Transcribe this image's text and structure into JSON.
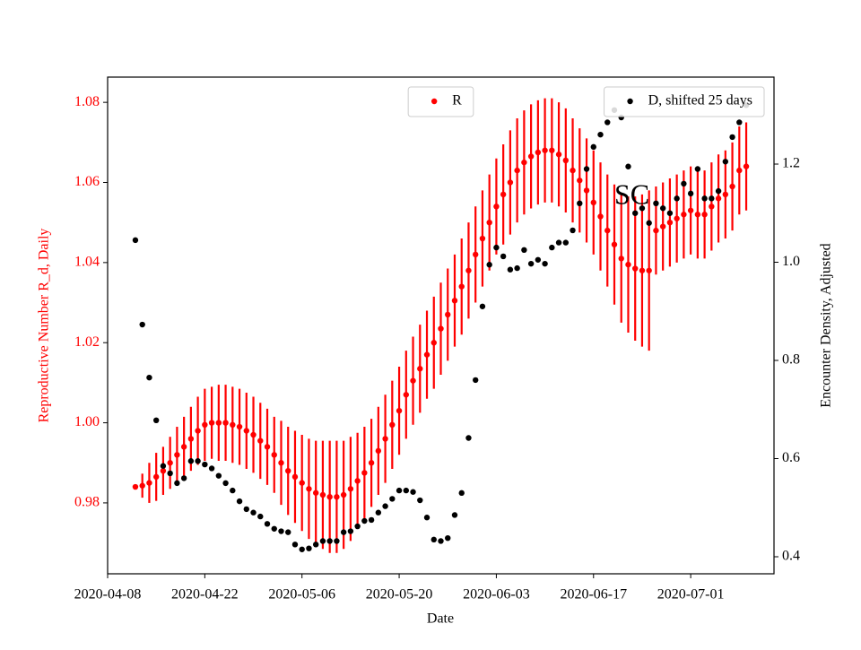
{
  "chart_data": {
    "type": "scatter",
    "xlabel": "Date",
    "ylabel": "Reproductive Number R_d, Daily",
    "y2label": "Encounter Density, Adjusted",
    "annotation": "SC",
    "x": [
      "2020-04-12",
      "2020-04-13",
      "2020-04-14",
      "2020-04-15",
      "2020-04-16",
      "2020-04-17",
      "2020-04-18",
      "2020-04-19",
      "2020-04-20",
      "2020-04-21",
      "2020-04-22",
      "2020-04-23",
      "2020-04-24",
      "2020-04-25",
      "2020-04-26",
      "2020-04-27",
      "2020-04-28",
      "2020-04-29",
      "2020-04-30",
      "2020-05-01",
      "2020-05-02",
      "2020-05-03",
      "2020-05-04",
      "2020-05-05",
      "2020-05-06",
      "2020-05-07",
      "2020-05-08",
      "2020-05-09",
      "2020-05-10",
      "2020-05-11",
      "2020-05-12",
      "2020-05-13",
      "2020-05-14",
      "2020-05-15",
      "2020-05-16",
      "2020-05-17",
      "2020-05-18",
      "2020-05-19",
      "2020-05-20",
      "2020-05-21",
      "2020-05-22",
      "2020-05-23",
      "2020-05-24",
      "2020-05-25",
      "2020-05-26",
      "2020-05-27",
      "2020-05-28",
      "2020-05-29",
      "2020-05-30",
      "2020-05-31",
      "2020-06-01",
      "2020-06-02",
      "2020-06-03",
      "2020-06-04",
      "2020-06-05",
      "2020-06-06",
      "2020-06-07",
      "2020-06-08",
      "2020-06-09",
      "2020-06-10",
      "2020-06-11",
      "2020-06-12",
      "2020-06-13",
      "2020-06-14",
      "2020-06-15",
      "2020-06-16",
      "2020-06-17",
      "2020-06-18",
      "2020-06-19",
      "2020-06-20",
      "2020-06-21",
      "2020-06-22",
      "2020-06-23",
      "2020-06-24",
      "2020-06-25",
      "2020-06-26",
      "2020-06-27",
      "2020-06-28",
      "2020-06-29",
      "2020-06-30",
      "2020-07-01",
      "2020-07-02",
      "2020-07-03",
      "2020-07-04",
      "2020-07-05",
      "2020-07-06",
      "2020-07-07",
      "2020-07-08",
      "2020-07-09"
    ],
    "series": [
      {
        "name": "R",
        "color": "#ff0000",
        "axis": "y",
        "legend": "upper center",
        "values": [
          0.984,
          0.9843,
          0.985,
          0.9865,
          0.988,
          0.99,
          0.992,
          0.994,
          0.996,
          0.998,
          0.9995,
          1.0,
          1.0,
          1.0,
          0.9995,
          0.999,
          0.998,
          0.997,
          0.9955,
          0.994,
          0.992,
          0.99,
          0.988,
          0.9865,
          0.985,
          0.9835,
          0.9825,
          0.982,
          0.9815,
          0.9815,
          0.982,
          0.9835,
          0.9855,
          0.9875,
          0.99,
          0.993,
          0.996,
          0.9995,
          1.003,
          1.007,
          1.0105,
          1.0135,
          1.017,
          1.02,
          1.0235,
          1.027,
          1.0305,
          1.034,
          1.038,
          1.042,
          1.046,
          1.05,
          1.054,
          1.057,
          1.06,
          1.063,
          1.065,
          1.0665,
          1.0675,
          1.068,
          1.068,
          1.067,
          1.0655,
          1.063,
          1.0605,
          1.058,
          1.055,
          1.0515,
          1.048,
          1.0445,
          1.041,
          1.0395,
          1.0385,
          1.038,
          1.038,
          1.048,
          1.049,
          1.05,
          1.051,
          1.052,
          1.053,
          1.052,
          1.052,
          1.054,
          1.056,
          1.057,
          1.059,
          1.063,
          1.064
        ],
        "errors": [
          0.0,
          0.003,
          0.005,
          0.006,
          0.006,
          0.0065,
          0.007,
          0.0075,
          0.008,
          0.0085,
          0.009,
          0.009,
          0.0095,
          0.0095,
          0.0095,
          0.0095,
          0.0095,
          0.0095,
          0.0095,
          0.0095,
          0.0095,
          0.0105,
          0.011,
          0.0115,
          0.012,
          0.0125,
          0.013,
          0.0135,
          0.014,
          0.014,
          0.0135,
          0.013,
          0.012,
          0.0115,
          0.011,
          0.011,
          0.011,
          0.011,
          0.011,
          0.011,
          0.011,
          0.011,
          0.011,
          0.0115,
          0.0115,
          0.0115,
          0.0115,
          0.012,
          0.012,
          0.012,
          0.012,
          0.012,
          0.012,
          0.0125,
          0.013,
          0.013,
          0.013,
          0.013,
          0.013,
          0.013,
          0.013,
          0.013,
          0.013,
          0.013,
          0.013,
          0.013,
          0.013,
          0.0135,
          0.014,
          0.015,
          0.016,
          0.017,
          0.018,
          0.019,
          0.02,
          0.011,
          0.011,
          0.011,
          0.011,
          0.011,
          0.011,
          0.011,
          0.011,
          0.011,
          0.011,
          0.011,
          0.011,
          0.011,
          0.011
        ]
      },
      {
        "name": "D, shifted 25 days",
        "color": "#000000",
        "axis": "y2",
        "legend": "upper right",
        "values": [
          1.045,
          0.873,
          0.765,
          0.678,
          0.585,
          0.57,
          0.55,
          0.56,
          0.595,
          0.595,
          0.588,
          0.58,
          0.565,
          0.55,
          0.535,
          0.513,
          0.497,
          0.49,
          0.482,
          0.467,
          0.457,
          0.452,
          0.45,
          0.425,
          0.415,
          0.417,
          0.425,
          0.432,
          0.432,
          0.432,
          0.45,
          0.452,
          0.462,
          0.473,
          0.475,
          0.49,
          0.503,
          0.518,
          0.535,
          0.535,
          0.532,
          0.515,
          0.48,
          0.435,
          0.432,
          0.438,
          0.485,
          0.53,
          0.642,
          0.76,
          0.91,
          0.995,
          1.03,
          1.012,
          0.985,
          0.988,
          1.025,
          0.997,
          1.005,
          0.997,
          1.03,
          1.04,
          1.04,
          1.065,
          1.12,
          1.19,
          1.235,
          1.26,
          1.285,
          1.31,
          1.295,
          1.195,
          1.1,
          1.11,
          1.08,
          1.12,
          1.11,
          1.1,
          1.13,
          1.16,
          1.14,
          1.19,
          1.13,
          1.13,
          1.145,
          1.205,
          1.255,
          1.285,
          1.32
        ]
      }
    ],
    "xlim": [
      "2020-04-08",
      "2020-07-13"
    ],
    "xticks": [
      "2020-04-08",
      "2020-04-22",
      "2020-05-06",
      "2020-05-20",
      "2020-06-03",
      "2020-06-17",
      "2020-07-01"
    ],
    "ylim": [
      0.9623,
      1.0863
    ],
    "yticks": [
      0.98,
      {
        "value": 1.0,
        "label": "1.00"
      },
      1.02,
      1.04,
      1.06,
      1.08
    ],
    "y2lim": [
      0.3653,
      1.3772
    ],
    "y2ticks": [
      0.4,
      0.6,
      0.8,
      {
        "value": 1.0,
        "label": "1.0"
      },
      1.2
    ]
  }
}
